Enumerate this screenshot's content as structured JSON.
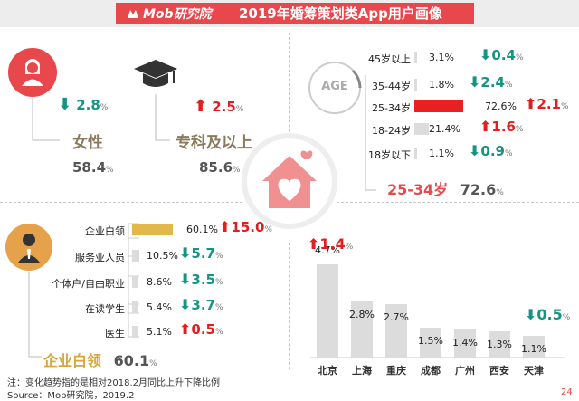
{
  "header": {
    "logo": "Mob研究院",
    "title": "2019年婚筹策划类App用户画像"
  },
  "gender": {
    "label": "女性",
    "value": "58.4",
    "pct_unit": "%",
    "change": "2.8",
    "direction": "down"
  },
  "education": {
    "label": "专科及以上",
    "value": "85.6",
    "pct_unit": "%",
    "change": "2.5",
    "direction": "up"
  },
  "age": {
    "badge": "AGE",
    "highlight_label": "25-34岁",
    "highlight_value": "72.6",
    "pct_unit": "%",
    "rows": [
      {
        "label": "45岁以上",
        "value": "3.1%",
        "change": "0.4",
        "direction": "down",
        "share": 0.031
      },
      {
        "label": "35-44岁",
        "value": "1.8%",
        "change": "2.4",
        "direction": "down",
        "share": 0.018
      },
      {
        "label": "25-34岁",
        "value": "72.6%",
        "change": "2.1",
        "direction": "up",
        "share": 0.726
      },
      {
        "label": "18-24岁",
        "value": "21.4%",
        "change": "1.6",
        "direction": "up",
        "share": 0.214
      },
      {
        "label": "18岁以下",
        "value": "1.1%",
        "change": "0.9",
        "direction": "down",
        "share": 0.011
      }
    ]
  },
  "occupation": {
    "highlight_label": "企业白领",
    "highlight_value": "60.1",
    "pct_unit": "%",
    "rows": [
      {
        "label": "企业白领",
        "value": "60.1%",
        "change": "15.0",
        "direction": "up",
        "share": 0.601
      },
      {
        "label": "服务业人员",
        "value": "10.5%",
        "change": "5.7",
        "direction": "down",
        "share": 0.105
      },
      {
        "label": "个体户/自由职业",
        "value": "8.6%",
        "change": "3.5",
        "direction": "down",
        "share": 0.086
      },
      {
        "label": "在读学生",
        "value": "5.4%",
        "change": "3.7",
        "direction": "down",
        "share": 0.054
      },
      {
        "label": "医生",
        "value": "5.1%",
        "change": "0.5",
        "direction": "up",
        "share": 0.051
      }
    ]
  },
  "city": {
    "bars": [
      {
        "label": "北京",
        "value": "4.7%",
        "share": 4.7
      },
      {
        "label": "上海",
        "value": "2.8%",
        "share": 2.8
      },
      {
        "label": "重庆",
        "value": "2.7%",
        "share": 2.7
      },
      {
        "label": "成都",
        "value": "1.5%",
        "share": 1.5
      },
      {
        "label": "广州",
        "value": "1.4%",
        "share": 1.4
      },
      {
        "label": "西安",
        "value": "1.3%",
        "share": 1.3
      },
      {
        "label": "天津",
        "value": "1.1%",
        "share": 1.1
      }
    ],
    "beijing_change": "1.4",
    "beijing_direction": "up",
    "tianjin_change": "0.5",
    "tianjin_direction": "down"
  },
  "footer": {
    "note": "注：变化趋势指的是相对2018.2月同比上升下降比例",
    "source": "Source：Mob研究院，2019.2",
    "page": "24"
  },
  "colors": {
    "accent": "#e8474c",
    "up": "#e02020",
    "down": "#159482",
    "highlight_age": "#e82020",
    "highlight_occ": "#e3b84a",
    "bar_gray": "#dcdcdc"
  }
}
